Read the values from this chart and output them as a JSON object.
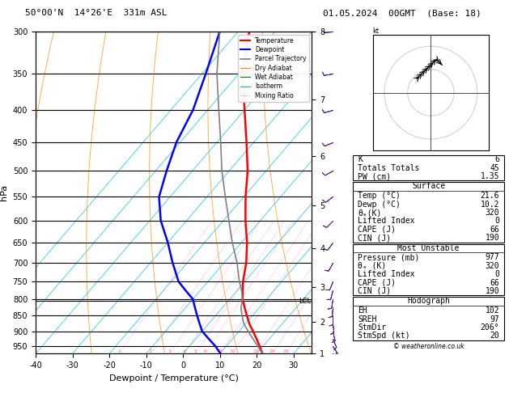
{
  "title_left": "50°00'N  14°26'E  331m ASL",
  "title_right": "01.05.2024  00GMT  (Base: 18)",
  "xlabel": "Dewpoint / Temperature (°C)",
  "ylabel_left": "hPa",
  "pressure_levels": [
    300,
    350,
    400,
    450,
    500,
    550,
    600,
    650,
    700,
    750,
    800,
    850,
    900,
    950
  ],
  "pressure_ticks": [
    300,
    350,
    400,
    450,
    500,
    550,
    600,
    650,
    700,
    750,
    800,
    850,
    900,
    950
  ],
  "temp_range": [
    -40,
    35
  ],
  "temp_ticks": [
    -40,
    -30,
    -20,
    -10,
    0,
    10,
    20,
    30
  ],
  "km_ticks": [
    1,
    2,
    3,
    4,
    5,
    6,
    7,
    8
  ],
  "km_pressures": [
    976.2,
    849.9,
    729.2,
    615.5,
    509.0,
    410.3,
    319.7,
    237.0
  ],
  "mixing_ratio_values": [
    1,
    2,
    3,
    4,
    5,
    6,
    8,
    10,
    15,
    20,
    25
  ],
  "mixing_ratio_color": "#ff69b4",
  "isotherm_color": "#00bfff",
  "dry_adiabat_color": "#ff8c00",
  "wet_adiabat_color": "#008000",
  "temp_color": "#ff0000",
  "dewpoint_color": "#0000ff",
  "parcel_color": "#808080",
  "wind_barb_color": "#551a8b",
  "background_color": "#ffffff",
  "lcl_pressure": 805,
  "temp_profile_p": [
    977,
    950,
    925,
    900,
    875,
    850,
    825,
    800,
    775,
    750,
    700,
    650,
    600,
    550,
    500,
    450,
    400,
    350,
    300
  ],
  "temp_profile_t": [
    21.6,
    19.0,
    16.5,
    13.8,
    11.0,
    8.5,
    6.0,
    3.5,
    1.5,
    -0.5,
    -4.0,
    -8.5,
    -14.0,
    -19.5,
    -25.0,
    -32.0,
    -40.0,
    -49.0,
    -57.0
  ],
  "dewp_profile_p": [
    977,
    950,
    925,
    900,
    875,
    850,
    825,
    800,
    775,
    750,
    700,
    650,
    600,
    550,
    500,
    450,
    400,
    350,
    300
  ],
  "dewp_profile_t": [
    10.2,
    7.0,
    3.5,
    0.0,
    -2.5,
    -5.0,
    -7.5,
    -10.0,
    -14.0,
    -18.0,
    -24.0,
    -30.0,
    -37.0,
    -43.0,
    -47.0,
    -51.0,
    -54.0,
    -59.0,
    -65.0
  ],
  "parcel_profile_p": [
    977,
    950,
    925,
    900,
    875,
    850,
    825,
    800,
    775,
    750,
    700,
    650,
    600,
    550,
    500,
    450,
    400,
    350,
    300
  ],
  "parcel_profile_t": [
    21.6,
    18.5,
    15.5,
    12.5,
    9.5,
    7.2,
    5.0,
    3.5,
    1.2,
    -1.5,
    -6.5,
    -12.5,
    -18.5,
    -25.0,
    -32.0,
    -39.0,
    -47.0,
    -56.0,
    -65.0
  ],
  "surface_data": {
    "K": 6,
    "Totals Totals": 45,
    "PW (cm)": 1.35,
    "Temp (C)": 21.6,
    "Dewp (C)": 10.2,
    "theta_e (K)": 320,
    "Lifted Index": 0,
    "CAPE (J)": 66,
    "CIN (J)": 190
  },
  "mu_data": {
    "Pressure (mb)": 977,
    "theta_e (K)": 320,
    "Lifted Index": 0,
    "CAPE (J)": 66,
    "CIN (J)": 190
  },
  "hodograph_data": {
    "EH": 102,
    "SREH": 97,
    "StmDir": 206,
    "StmSpd (kt)": 20
  },
  "wind_levels_p": [
    977,
    950,
    925,
    900,
    875,
    850,
    825,
    800,
    775,
    750,
    700,
    650,
    600,
    550,
    500,
    450,
    400,
    350,
    300
  ],
  "wind_u": [
    -5,
    -4,
    -3,
    -2,
    -1,
    0,
    1,
    2,
    3,
    4,
    5,
    6,
    7,
    8,
    9,
    10,
    11,
    12,
    13
  ],
  "wind_v": [
    5,
    6,
    7,
    8,
    9,
    10,
    11,
    12,
    11,
    10,
    9,
    8,
    7,
    6,
    5,
    4,
    3,
    2,
    1
  ]
}
